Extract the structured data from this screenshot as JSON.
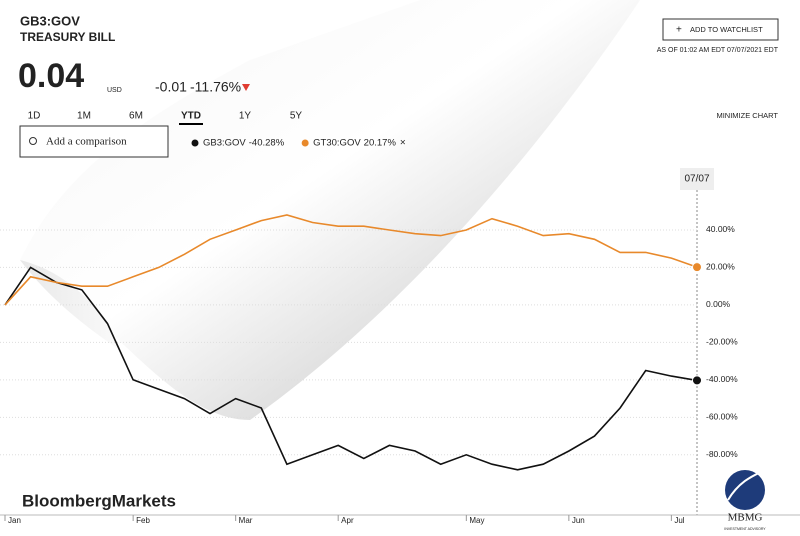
{
  "header": {
    "ticker": "GB3:GOV",
    "name": "TREASURY BILL",
    "price": "0.04",
    "currency": "USD",
    "change": "-0.01",
    "change_pct": "-11.76%",
    "watchlist_button": "ADD TO WATCHLIST",
    "as_of": "AS OF 01:02 AM EDT 07/07/2021 EDT"
  },
  "ranges": [
    "1D",
    "1M",
    "6M",
    "YTD",
    "1Y",
    "5Y"
  ],
  "active_range": "YTD",
  "minimize": "MINIMIZE CHART",
  "comparison_placeholder": "Add a comparison",
  "cursor_date": "07/07",
  "watermark": "BloombergMarkets",
  "logo": {
    "name": "MBMG",
    "tagline": "INVESTMENT ADVISORY"
  },
  "chart_data": {
    "type": "line",
    "categories": [
      "Jan",
      null,
      null,
      null,
      null,
      "Feb",
      null,
      null,
      null,
      "Mar",
      null,
      null,
      null,
      "Apr",
      null,
      null,
      null,
      null,
      "May",
      null,
      null,
      null,
      "Jun",
      null,
      null,
      null,
      "Jul",
      null
    ],
    "series": [
      {
        "name": "GB3:GOV",
        "change": "-40.28%",
        "color": "#111111",
        "values": [
          0,
          20,
          12,
          8,
          -10,
          -40,
          -45,
          -50,
          -58,
          -50,
          -55,
          -85,
          -80,
          -75,
          -82,
          -75,
          -78,
          -85,
          -80,
          -85,
          -88,
          -85,
          -78,
          -70,
          -55,
          -35,
          -38,
          -40.28
        ]
      },
      {
        "name": "GT30:GOV",
        "change": "20.17%",
        "color": "#e8892b",
        "values": [
          0,
          15,
          12,
          10,
          10,
          15,
          20,
          27,
          35,
          40,
          45,
          48,
          44,
          42,
          42,
          40,
          38,
          37,
          40,
          46,
          42,
          37,
          38,
          35,
          28,
          28,
          25,
          20.17
        ]
      }
    ],
    "ylim": [
      -110,
      70
    ],
    "yticks": [
      {
        "value": 40,
        "label": "40.00%"
      },
      {
        "value": 20,
        "label": "20.00%"
      },
      {
        "value": 0,
        "label": "0.00%"
      },
      {
        "value": -20,
        "label": "-20.00%"
      },
      {
        "value": -40,
        "label": "-40.00%"
      },
      {
        "value": -60,
        "label": "-60.00%"
      },
      {
        "value": -80,
        "label": "-80.00%"
      }
    ],
    "grid": true
  }
}
